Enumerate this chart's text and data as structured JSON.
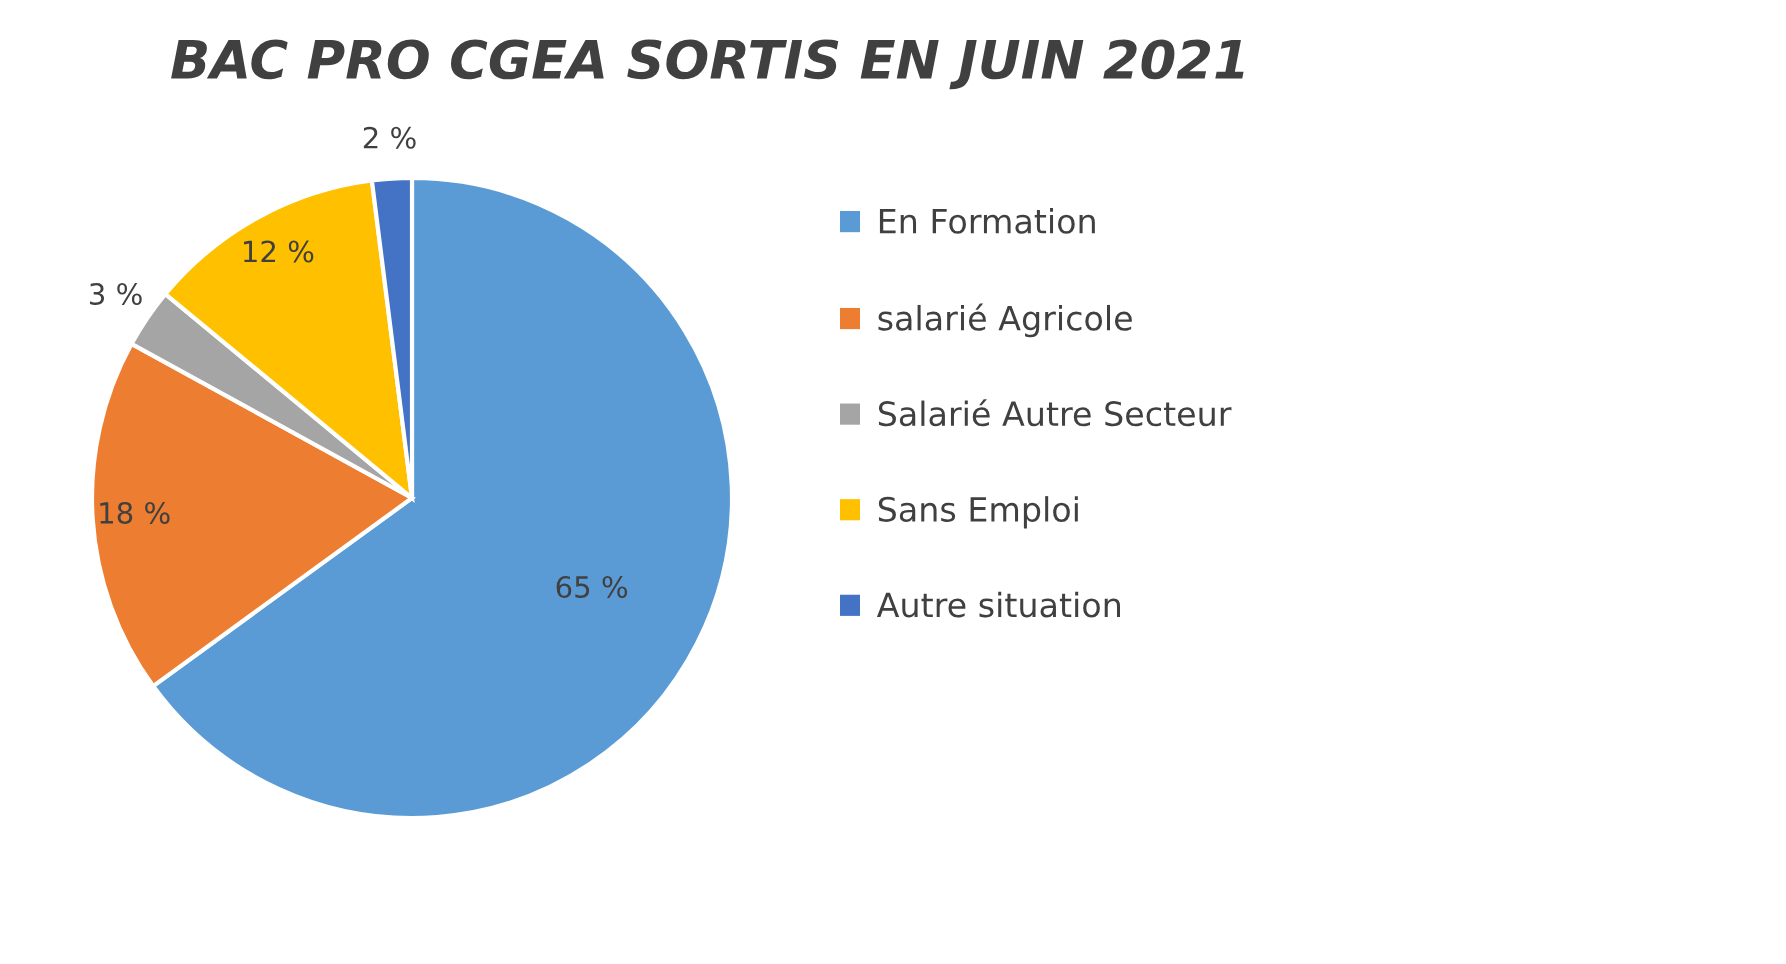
{
  "chart_data": {
    "type": "pie",
    "title": "BAC PRO CGEA SORTIS EN JUIN 2021",
    "categories": [
      "En Formation",
      "salarié Agricole",
      "Salarié Autre Secteur",
      "Sans Emploi",
      "Autre situation"
    ],
    "values": [
      65,
      18,
      3,
      12,
      2
    ],
    "colors": [
      "#5b9bd5",
      "#ed7d31",
      "#a5a5a5",
      "#ffc000",
      "#4472c4"
    ],
    "value_labels": [
      "65 %",
      "18 %",
      "3 %",
      "12 %",
      "2 %"
    ],
    "legend": "right"
  }
}
